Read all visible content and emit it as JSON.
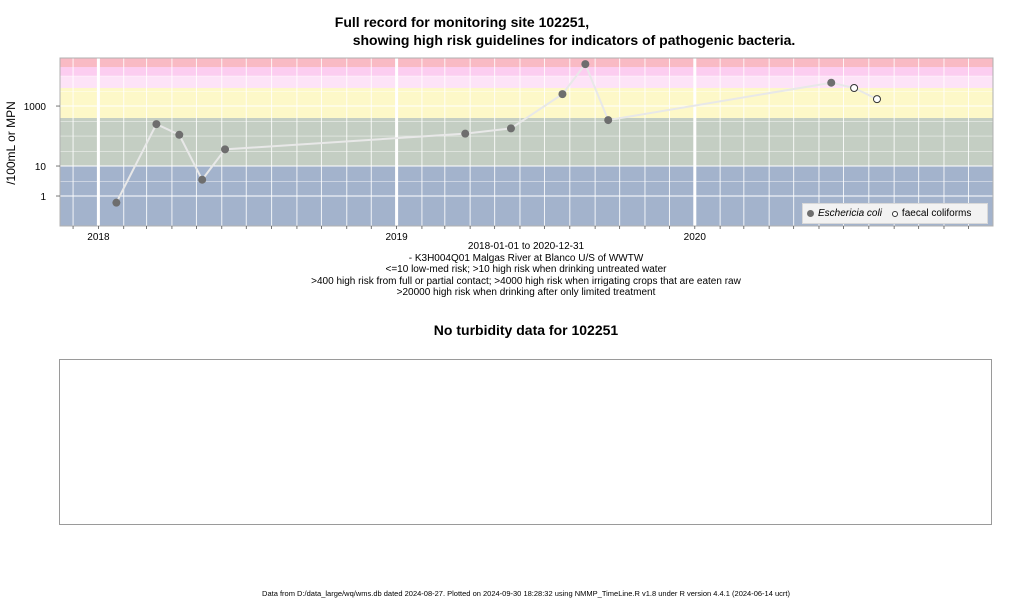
{
  "title_line1": "Full record for monitoring site 102251,",
  "title_line2": "showing high risk guidelines for indicators of pathogenic bacteria.",
  "captions": [
    "2018-01-01 to 2020-12-31",
    "- K3H004Q01 Malgas River at Blanco U/S of WWTW",
    "<=10 low-med risk; >10 high risk when drinking untreated water",
    ">400 high risk from full or partial contact; >4000 high risk when irrigating crops that are eaten raw",
    ">20000 high risk when drinking after only limited treatment"
  ],
  "turbidity_title": "No turbidity data for 102251",
  "footer": "Data from D:/data_large/wq/wms.db dated 2024-08-27. Plotted on 2024-09-30 18:28:32 using NMMP_TimeLine.R v1.8 under R version 4.4.1 (2024-06-14 ucrt)",
  "chart_data": {
    "type": "scatter",
    "ylabel": "/100mL or MPN",
    "y_scale": "log",
    "x_range": [
      "2017-11-15",
      "2020-12-31"
    ],
    "y_range": [
      0.1,
      40000
    ],
    "y_ticks": [
      1,
      10,
      1000
    ],
    "y_tick_labels": [
      "1",
      "10",
      "1000"
    ],
    "x_ticks": [
      "2018-01-01",
      "2019-01-01",
      "2020-01-01"
    ],
    "x_tick_labels": [
      "2018",
      "2019",
      "2020"
    ],
    "risk_bands": [
      {
        "from": 0.1,
        "to": 10,
        "color": "#a3b3cc"
      },
      {
        "from": 10,
        "to": 400,
        "color": "#c4cec3"
      },
      {
        "from": 400,
        "to": 4000,
        "color": "#fdf8c8"
      },
      {
        "from": 4000,
        "to": 10000,
        "color": "#fde3f7"
      },
      {
        "from": 10000,
        "to": 20000,
        "color": "#fccdf0"
      },
      {
        "from": 20000,
        "to": 40000,
        "color": "#f9bac4"
      }
    ],
    "legend_position": "bottom-right",
    "legend": [
      {
        "label": "Eschericia coli",
        "style": "filled",
        "italic": true
      },
      {
        "label": "faecal coliforms",
        "style": "open",
        "italic": false
      }
    ],
    "series": [
      {
        "name": "Eschericia coli",
        "style": "filled",
        "color": "#6e6e6e",
        "points": [
          {
            "x": "2018-01-23",
            "y": 0.6
          },
          {
            "x": "2018-03-13",
            "y": 250
          },
          {
            "x": "2018-04-10",
            "y": 110
          },
          {
            "x": "2018-05-08",
            "y": 3.5
          },
          {
            "x": "2018-06-05",
            "y": 36
          },
          {
            "x": "2019-03-26",
            "y": 120
          },
          {
            "x": "2019-05-21",
            "y": 180
          },
          {
            "x": "2019-07-23",
            "y": 2500
          },
          {
            "x": "2019-08-20",
            "y": 25000
          },
          {
            "x": "2019-09-17",
            "y": 340
          },
          {
            "x": "2020-06-16",
            "y": 6000
          }
        ]
      },
      {
        "name": "faecal coliforms",
        "style": "open",
        "color": "#333333",
        "points": [
          {
            "x": "2020-07-14",
            "y": 4000
          },
          {
            "x": "2020-08-11",
            "y": 1700
          }
        ]
      }
    ]
  }
}
